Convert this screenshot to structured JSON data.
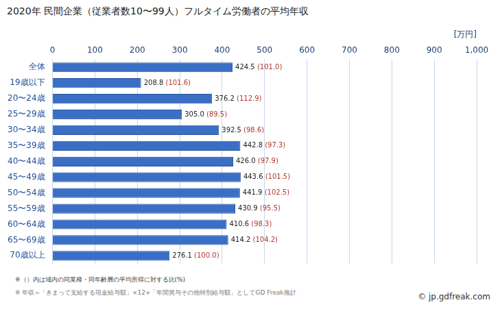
{
  "chart_data": {
    "type": "bar",
    "title": "2020年 民間企業（従業者数10〜99人）フルタイム労働者の平均年収",
    "x_label": "[万円]",
    "categories": [
      "全体",
      "19歳以下",
      "20〜24歳",
      "25〜29歳",
      "30〜34歳",
      "35〜39歳",
      "40〜44歳",
      "45〜49歳",
      "50〜54歳",
      "55〜59歳",
      "60〜64歳",
      "65〜69歳",
      "70歳以上"
    ],
    "values": [
      424.5,
      208.8,
      376.2,
      305.0,
      392.5,
      442.8,
      426.0,
      443.6,
      441.9,
      430.9,
      410.6,
      414.2,
      276.1
    ],
    "value_labels": [
      "424.5",
      "208.8",
      "376.2",
      "305.0",
      "392.5",
      "442.8",
      "426.0",
      "443.6",
      "441.9",
      "430.9",
      "410.6",
      "414.2",
      "276.1"
    ],
    "ratio_labels": [
      "(101.0)",
      "(101.6)",
      "(112.9)",
      "(89.5)",
      "(98.6)",
      "(97.3)",
      "(97.9)",
      "(101.5)",
      "(102.5)",
      "(95.5)",
      "(98.3)",
      "(104.2)",
      "(100.0)"
    ],
    "color": "#3b6fc6",
    "orientation": "horizontal",
    "xlim": [
      0,
      1000
    ],
    "xticks": [
      0,
      100,
      200,
      300,
      400,
      500,
      600,
      700,
      800,
      900,
      1000
    ],
    "grid": true,
    "data_labels": true,
    "notes": [
      "※（）内は域内の同業種・同年齢層の平均所得に対する比(%)",
      "※ 年収=「きまって支給する現金給与額」×12+「年間賞与その他特別給与額」としてGD Freak推計"
    ],
    "credit": "© jp.gdfreak.com"
  }
}
